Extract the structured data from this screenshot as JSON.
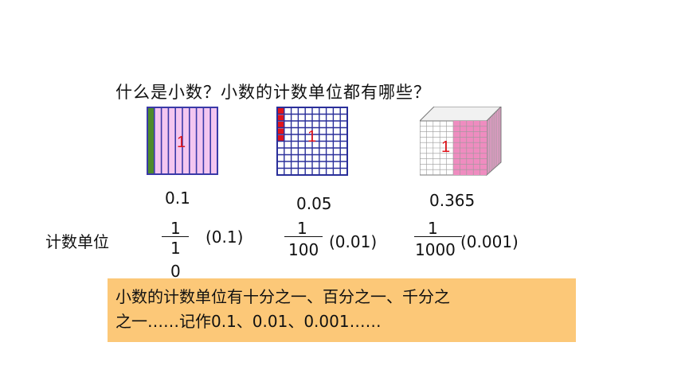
{
  "question": "什么是小数？小数的计数单位都有哪些？",
  "model_label": "1",
  "values": [
    "0.1",
    "0.05",
    "0.365"
  ],
  "unit_label": "计数单位",
  "fractions": [
    {
      "numerator": "1",
      "denominator_line1": "1",
      "denominator_line2": "0",
      "decimal": "(0.1)"
    },
    {
      "numerator": "1",
      "denominator": "100",
      "decimal": "(0.01)"
    },
    {
      "numerator": "1",
      "denominator": "1000",
      "decimal": "(0.001)"
    }
  ],
  "note": {
    "line1": "小数的计数单位有十分之一、百分之一、千分之",
    "line2": "之一……记作0.1、0.01、0.001……"
  },
  "colors": {
    "tenths_fill": "#f4c6f0",
    "tenths_line": "#3a3aa8",
    "tenths_green": "#4e8a2a",
    "hundredths_line": "#2a2f9a",
    "hundredths_red": "#e0141b",
    "cube_pink": "#ef8cc0",
    "note_bg": "#fcc878"
  }
}
